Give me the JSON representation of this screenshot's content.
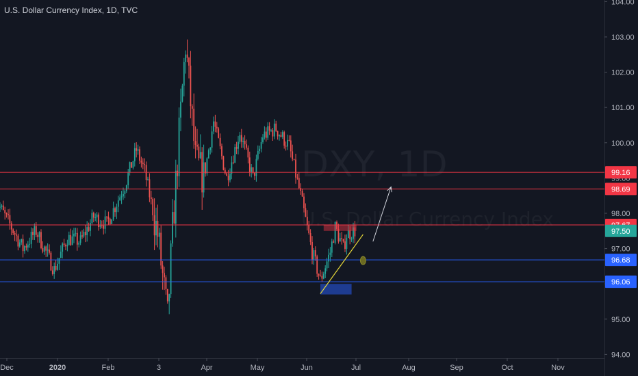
{
  "header": {
    "title": "U.S. Dollar Currency Index, 1D, TVC"
  },
  "watermark": {
    "symbol": "DXY, 1D",
    "name": "U.S. Dollar Currency Index"
  },
  "colors": {
    "background": "#131722",
    "up": "#26a69a",
    "down": "#ef5350",
    "resistance": "#f23645",
    "support": "#2962ff",
    "last_price": "#26a69a",
    "trendline": "#e6d83a",
    "arrow": "#d1d4dc"
  },
  "chart_data": {
    "type": "candlestick",
    "y_axis": {
      "range": [
        93.9,
        104.1
      ],
      "ticks": [
        "94.00",
        "95.00",
        "96.00",
        "97.00",
        "98.00",
        "99.00",
        "100.00",
        "101.00",
        "102.00",
        "103.00",
        "104.00"
      ]
    },
    "x_axis": {
      "labels": [
        "Dec",
        "2020",
        "Feb",
        "3",
        "Apr",
        "May",
        "Jun",
        "Jul",
        "Aug",
        "Sep",
        "Oct",
        "Nov"
      ],
      "bold": [
        "2020"
      ]
    },
    "price_lines": [
      {
        "label": "99.16",
        "value": 99.16,
        "kind": "resistance"
      },
      {
        "label": "98.69",
        "value": 98.69,
        "kind": "resistance"
      },
      {
        "label": "97.67",
        "value": 97.67,
        "kind": "resistance"
      },
      {
        "label": "96.68",
        "value": 96.68,
        "kind": "support"
      },
      {
        "label": "96.06",
        "value": 96.06,
        "kind": "support"
      }
    ],
    "last_price": {
      "label": "97.50",
      "value": 97.5
    },
    "zones": [
      {
        "kind": "resistance",
        "x_from": "2020-06-12",
        "x_to": "2020-07-02",
        "y_from": 97.5,
        "y_to": 97.67
      },
      {
        "kind": "support",
        "x_from": "2020-06-10",
        "x_to": "2020-06-29",
        "y_from": 95.7,
        "y_to": 96.0
      }
    ],
    "trendline": {
      "from": {
        "date": "2020-06-10",
        "value": 95.72
      },
      "to": {
        "date": "2020-07-06",
        "value": 97.4
      }
    },
    "ellipse": {
      "date": "2020-07-06",
      "value": 96.68
    },
    "arrow": {
      "from": {
        "date": "2020-07-12",
        "value": 97.2
      },
      "to": {
        "date": "2020-07-23",
        "value": 98.75
      }
    },
    "series_anchors": [
      [
        "2019-11-25",
        98.4
      ],
      [
        "2019-12-05",
        97.6
      ],
      [
        "2019-12-12",
        97.0
      ],
      [
        "2019-12-20",
        97.5
      ],
      [
        "2019-12-31",
        96.4
      ],
      [
        "2020-01-08",
        97.3
      ],
      [
        "2020-01-16",
        97.2
      ],
      [
        "2020-01-24",
        97.9
      ],
      [
        "2020-02-01",
        97.7
      ],
      [
        "2020-02-12",
        98.8
      ],
      [
        "2020-02-19",
        99.8
      ],
      [
        "2020-02-24",
        99.2
      ],
      [
        "2020-03-03",
        97.4
      ],
      [
        "2020-03-09",
        95.0
      ],
      [
        "2020-03-12",
        97.5
      ],
      [
        "2020-03-18",
        101.5
      ],
      [
        "2020-03-20",
        102.8
      ],
      [
        "2020-03-26",
        99.5
      ],
      [
        "2020-03-31",
        99.0
      ],
      [
        "2020-04-06",
        100.6
      ],
      [
        "2020-04-14",
        99.0
      ],
      [
        "2020-04-22",
        100.3
      ],
      [
        "2020-04-30",
        99.0
      ],
      [
        "2020-05-06",
        100.2
      ],
      [
        "2020-05-14",
        100.4
      ],
      [
        "2020-05-22",
        99.9
      ],
      [
        "2020-05-29",
        98.5
      ],
      [
        "2020-06-05",
        96.9
      ],
      [
        "2020-06-10",
        96.1
      ],
      [
        "2020-06-16",
        96.9
      ],
      [
        "2020-06-19",
        97.6
      ],
      [
        "2020-06-24",
        97.0
      ],
      [
        "2020-06-26",
        97.4
      ],
      [
        "2020-07-01",
        97.5
      ]
    ]
  }
}
